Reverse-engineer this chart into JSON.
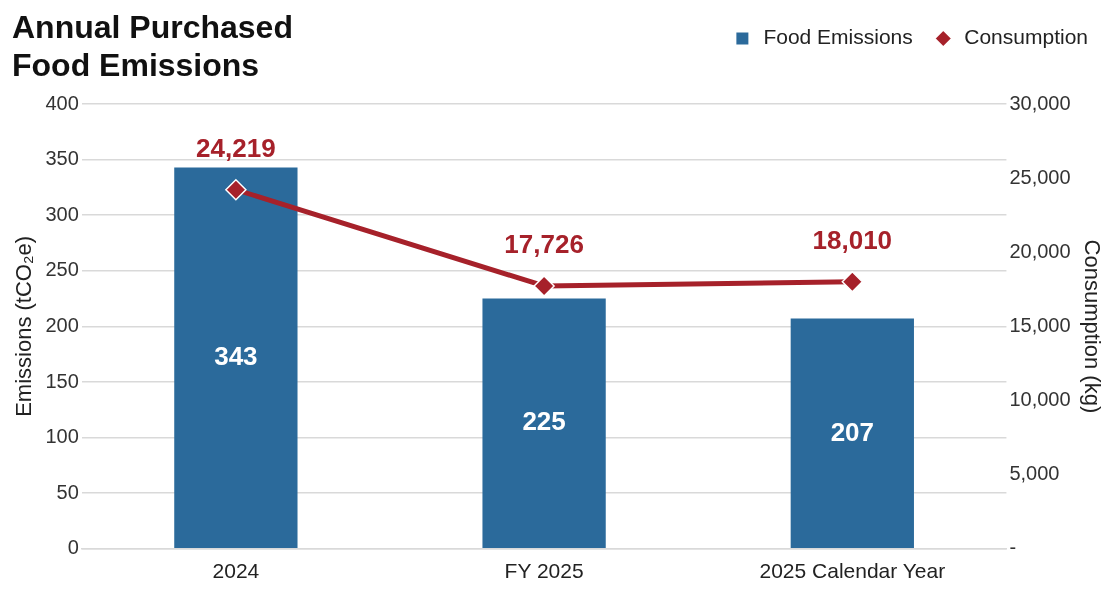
{
  "chart_data": {
    "type": "bar",
    "title": "Annual Purchased Food Emissions",
    "categories": [
      "2024",
      "FY 2025",
      "2025 Calendar Year"
    ],
    "series": [
      {
        "name": "Food Emissions",
        "color": "#2b6a9b",
        "values": [
          343,
          225,
          207
        ]
      },
      {
        "name": "Consumption",
        "type": "line",
        "axis": "y2",
        "color": "#a6212a",
        "values": [
          24219,
          17726,
          18010
        ],
        "value_labels": [
          "24,219",
          "17,726",
          "18,010"
        ],
        "marker": "diamond",
        "line_style": "solid"
      }
    ],
    "ylabel": "Emissions (tCO₂e)",
    "y2label": "Consumption (kg)",
    "ylim": [
      0,
      400
    ],
    "yticks": [
      0,
      50,
      100,
      150,
      200,
      250,
      300,
      350,
      400
    ],
    "y2lim": [
      0,
      30000
    ],
    "y2ticks": [
      {
        "value": 0,
        "label": "-"
      },
      {
        "value": 5000,
        "label": "5,000"
      },
      {
        "value": 10000,
        "label": "10,000"
      },
      {
        "value": 15000,
        "label": "15,000"
      },
      {
        "value": 20000,
        "label": "20,000"
      },
      {
        "value": 25000,
        "label": "25,000"
      },
      {
        "value": 30000,
        "label": "30,000"
      }
    ],
    "grid": "y",
    "legend": "top right",
    "data_labels": true
  }
}
